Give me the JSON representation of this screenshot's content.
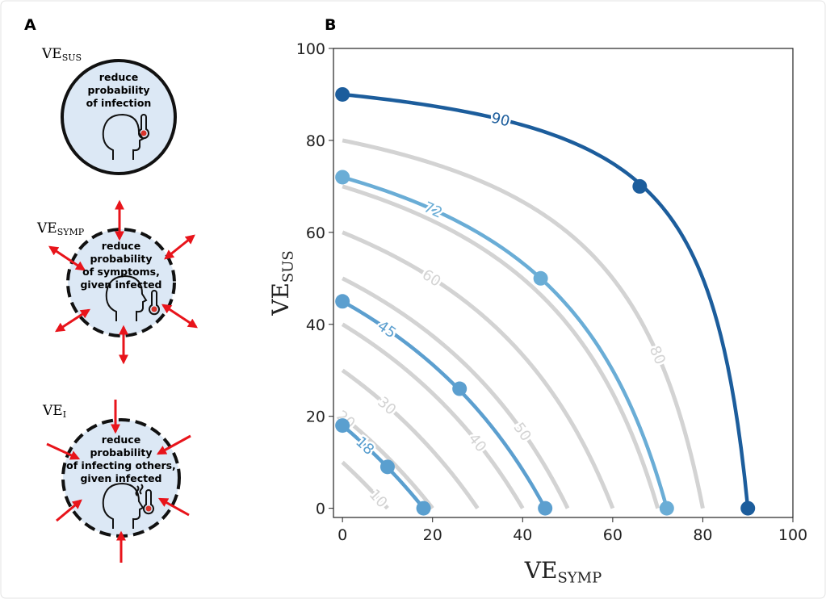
{
  "panel_a": {
    "label": "A",
    "items": [
      {
        "label_main": "VE",
        "label_sub": "SUS",
        "text_lines": [
          "reduce",
          "probability",
          "of infection"
        ]
      },
      {
        "label_main": "VE",
        "label_sub": "SYMP",
        "text_lines": [
          "reduce",
          "probability",
          "of symptoms,",
          "given infected"
        ]
      },
      {
        "label_main": "VE",
        "label_sub": "I",
        "text_lines": [
          "reduce",
          "probability",
          "of infecting others,",
          "given infected"
        ]
      }
    ]
  },
  "chart_data": {
    "type": "contour",
    "panel_label": "B",
    "xlabel": {
      "main": "VE",
      "sub": "SYMP"
    },
    "ylabel": {
      "main": "VE",
      "sub": "SUS"
    },
    "xlim": [
      -2,
      100
    ],
    "ylim": [
      -2,
      100
    ],
    "xticks": [
      0,
      20,
      40,
      60,
      80,
      100
    ],
    "yticks": [
      0,
      20,
      40,
      60,
      80,
      100
    ],
    "contours": {
      "color": "#d3d3d3",
      "levels": [
        10,
        20,
        30,
        40,
        50,
        60,
        70,
        80
      ],
      "labeled": [
        true,
        true,
        true,
        true,
        true,
        true,
        false,
        true
      ]
    },
    "series": [
      {
        "level": 90,
        "color": "#1c5d9c",
        "x": [
          0,
          66,
          90
        ],
        "values": [
          90,
          70,
          0
        ]
      },
      {
        "level": 72,
        "color": "#6aadd6",
        "x": [
          0,
          44,
          72
        ],
        "values": [
          72,
          50,
          0
        ]
      },
      {
        "level": 45,
        "color": "#5c9fcf",
        "x": [
          0,
          26,
          45
        ],
        "values": [
          45,
          26,
          0
        ]
      },
      {
        "level": 18,
        "color": "#5a9fcf",
        "x": [
          0,
          10,
          18
        ],
        "values": [
          18,
          9,
          0
        ]
      }
    ]
  }
}
